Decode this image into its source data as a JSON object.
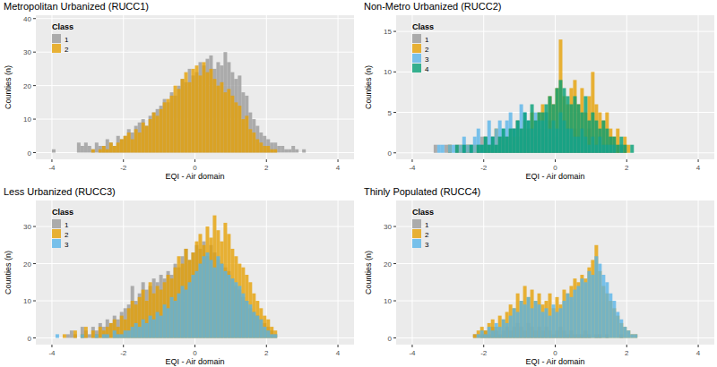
{
  "chart_data": [
    {
      "type": "histogram",
      "title": "Metropolitan Urbanized (RUCC1)",
      "x_label": "EQI - Air domain",
      "y_label": "Counties (n)",
      "legend_title": "Class",
      "legend": "top-left",
      "grid": true,
      "xlim": [
        -4.45,
        4.45
      ],
      "xticks": [
        -4,
        -2,
        0,
        2,
        4
      ],
      "ylim": [
        -2,
        41
      ],
      "yticks": [
        0,
        10,
        20,
        30,
        40
      ],
      "bins": [
        -4,
        -3.9,
        -3.8,
        -3.7,
        -3.6,
        -3.5,
        -3.4,
        -3.3,
        -3.2,
        -3.1,
        -3,
        -2.9,
        -2.8,
        -2.7,
        -2.6,
        -2.5,
        -2.4,
        -2.3,
        -2.2,
        -2.1,
        -2,
        -1.9,
        -1.8,
        -1.7,
        -1.6,
        -1.5,
        -1.4,
        -1.3,
        -1.2,
        -1.1,
        -1,
        -0.9,
        -0.8,
        -0.7,
        -0.6,
        -0.5,
        -0.4,
        -0.3,
        -0.2,
        -0.1,
        0,
        0.1,
        0.2,
        0.3,
        0.4,
        0.5,
        0.6,
        0.7,
        0.8,
        0.9,
        1,
        1.1,
        1.2,
        1.3,
        1.4,
        1.5,
        1.6,
        1.7,
        1.8,
        1.9,
        2,
        2.1,
        2.2,
        2.3,
        2.4,
        2.5,
        2.6,
        2.7,
        2.8,
        2.9,
        3,
        3.1
      ],
      "series": [
        {
          "name": "1",
          "color": "#999999",
          "values": [
            1,
            0,
            0,
            0,
            0,
            0,
            0,
            3,
            2,
            3,
            2,
            1,
            3,
            2,
            2,
            4,
            3,
            2,
            5,
            4,
            5,
            7,
            6,
            8,
            9,
            10,
            8,
            11,
            12,
            13,
            14,
            16,
            15,
            18,
            17,
            20,
            22,
            21,
            25,
            23,
            24,
            27,
            26,
            28,
            29,
            25,
            27,
            26,
            30,
            27,
            24,
            22,
            23,
            18,
            17,
            12,
            10,
            8,
            6,
            5,
            4,
            3,
            3,
            2,
            2,
            1,
            1,
            2,
            1,
            0,
            1
          ]
        },
        {
          "name": "2",
          "color": "#E69F00",
          "values": [
            0,
            0,
            0,
            0,
            0,
            0,
            0,
            0,
            0,
            0,
            0,
            1,
            0,
            1,
            2,
            1,
            3,
            2,
            3,
            4,
            5,
            6,
            4,
            7,
            6,
            9,
            8,
            10,
            12,
            11,
            13,
            15,
            16,
            17,
            20,
            19,
            22,
            24,
            21,
            25,
            26,
            23,
            27,
            24,
            25,
            22,
            20,
            21,
            18,
            19,
            17,
            15,
            14,
            10,
            11,
            7,
            6,
            4,
            3,
            2,
            2,
            1,
            1,
            0,
            0,
            0,
            0,
            0,
            0,
            0,
            0
          ]
        }
      ]
    },
    {
      "type": "histogram",
      "title": "Non-Metro Urbanized (RUCC2)",
      "x_label": "EQI - Air domain",
      "y_label": "Counties (n)",
      "legend_title": "Class",
      "legend": "top-left",
      "grid": true,
      "xlim": [
        -4.45,
        4.45
      ],
      "xticks": [
        -4,
        -2,
        0,
        2,
        4
      ],
      "ylim": [
        -0.8,
        17
      ],
      "yticks": [
        0,
        5,
        10,
        15
      ],
      "bins": [
        -3.4,
        -3.3,
        -3.2,
        -3.1,
        -3,
        -2.9,
        -2.8,
        -2.7,
        -2.6,
        -2.5,
        -2.4,
        -2.3,
        -2.2,
        -2.1,
        -2,
        -1.9,
        -1.8,
        -1.7,
        -1.6,
        -1.5,
        -1.4,
        -1.3,
        -1.2,
        -1.1,
        -1,
        -0.9,
        -0.8,
        -0.7,
        -0.6,
        -0.5,
        -0.4,
        -0.3,
        -0.2,
        -0.1,
        0,
        0.1,
        0.2,
        0.3,
        0.4,
        0.5,
        0.6,
        0.7,
        0.8,
        0.9,
        1,
        1.1,
        1.2,
        1.3,
        1.4,
        1.5,
        1.6,
        1.7,
        1.8,
        1.9,
        2,
        2.1,
        2.2
      ],
      "series": [
        {
          "name": "1",
          "color": "#999999",
          "values": [
            1,
            0,
            0,
            1,
            1,
            0,
            1,
            0,
            1,
            1,
            1,
            0,
            1,
            2,
            1,
            1,
            2,
            1,
            2,
            1,
            2,
            1,
            3,
            2,
            2,
            3,
            2,
            3,
            2,
            3,
            3,
            2,
            4,
            3,
            2,
            3,
            4,
            3,
            2,
            3,
            2,
            3,
            2,
            3,
            2,
            1,
            2,
            1,
            1,
            2,
            1,
            1,
            0,
            1,
            0,
            0
          ]
        },
        {
          "name": "2",
          "color": "#E69F00",
          "values": [
            0,
            0,
            0,
            0,
            1,
            0,
            0,
            1,
            0,
            1,
            0,
            1,
            1,
            0,
            2,
            1,
            1,
            3,
            2,
            2,
            2,
            3,
            2,
            4,
            3,
            4,
            3,
            5,
            4,
            5,
            6,
            5,
            7,
            6,
            8,
            14,
            7,
            6,
            8,
            9,
            6,
            8,
            5,
            7,
            10,
            6,
            5,
            4,
            5,
            3,
            2,
            3,
            1,
            2,
            1,
            0
          ]
        },
        {
          "name": "3",
          "color": "#56B4E9",
          "values": [
            0,
            1,
            1,
            0,
            1,
            1,
            0,
            1,
            2,
            1,
            1,
            2,
            3,
            1,
            2,
            4,
            2,
            3,
            4,
            3,
            4,
            5,
            3,
            4,
            6,
            5,
            4,
            3,
            5,
            4,
            4,
            5,
            3,
            4,
            3,
            5,
            4,
            3,
            3,
            2,
            2,
            3,
            2,
            1,
            2,
            1,
            2,
            1,
            1,
            1,
            1,
            0,
            1,
            0,
            0,
            0
          ]
        },
        {
          "name": "4",
          "color": "#009E73",
          "values": [
            0,
            0,
            0,
            0,
            0,
            0,
            1,
            0,
            1,
            0,
            1,
            0,
            1,
            1,
            2,
            1,
            2,
            1,
            2,
            3,
            2,
            3,
            3,
            4,
            3,
            5,
            4,
            6,
            4,
            5,
            5,
            6,
            7,
            6,
            8,
            9,
            8,
            7,
            6,
            7,
            6,
            5,
            7,
            4,
            5,
            4,
            3,
            4,
            3,
            2,
            2,
            1,
            2,
            1,
            0,
            1
          ]
        }
      ]
    },
    {
      "type": "histogram",
      "title": "Less Urbanized (RUCC3)",
      "x_label": "EQI - Air domain",
      "y_label": "Counties (n)",
      "legend_title": "Class",
      "legend": "top-left",
      "grid": true,
      "xlim": [
        -4.45,
        4.45
      ],
      "xticks": [
        -4,
        -2,
        0,
        2,
        4
      ],
      "ylim": [
        -1.8,
        37
      ],
      "yticks": [
        0,
        10,
        20,
        30
      ],
      "bins": [
        -3.9,
        -3.8,
        -3.7,
        -3.6,
        -3.5,
        -3.4,
        -3.3,
        -3.2,
        -3.1,
        -3,
        -2.9,
        -2.8,
        -2.7,
        -2.6,
        -2.5,
        -2.4,
        -2.3,
        -2.2,
        -2.1,
        -2,
        -1.9,
        -1.8,
        -1.7,
        -1.6,
        -1.5,
        -1.4,
        -1.3,
        -1.2,
        -1.1,
        -1,
        -0.9,
        -0.8,
        -0.7,
        -0.6,
        -0.5,
        -0.4,
        -0.3,
        -0.2,
        -0.1,
        0,
        0.1,
        0.2,
        0.3,
        0.4,
        0.5,
        0.6,
        0.7,
        0.8,
        0.9,
        1,
        1.1,
        1.2,
        1.3,
        1.4,
        1.5,
        1.6,
        1.7,
        1.8,
        1.9,
        2,
        2.1,
        2.2,
        2.3
      ],
      "series": [
        {
          "name": "1",
          "color": "#999999",
          "values": [
            0,
            0,
            0,
            1,
            2,
            1,
            0,
            3,
            2,
            1,
            3,
            2,
            4,
            3,
            5,
            4,
            6,
            5,
            7,
            8,
            9,
            14,
            10,
            12,
            15,
            13,
            14,
            16,
            15,
            17,
            16,
            18,
            17,
            20,
            19,
            22,
            24,
            21,
            23,
            25,
            24,
            26,
            22,
            25,
            23,
            21,
            20,
            19,
            18,
            16,
            14,
            13,
            11,
            10,
            8,
            7,
            6,
            5,
            4,
            3,
            2,
            1
          ]
        },
        {
          "name": "2",
          "color": "#E69F00",
          "values": [
            0,
            0,
            1,
            0,
            0,
            2,
            0,
            1,
            3,
            0,
            2,
            1,
            3,
            2,
            3,
            4,
            5,
            3,
            6,
            5,
            8,
            10,
            9,
            11,
            13,
            10,
            15,
            12,
            14,
            13,
            15,
            17,
            16,
            19,
            22,
            20,
            24,
            21,
            23,
            26,
            28,
            25,
            30,
            27,
            33,
            29,
            26,
            31,
            28,
            24,
            22,
            20,
            19,
            17,
            15,
            12,
            10,
            8,
            6,
            5,
            3,
            2
          ]
        },
        {
          "name": "3",
          "color": "#56B4E9",
          "values": [
            1,
            0,
            0,
            0,
            0,
            0,
            0,
            1,
            0,
            0,
            0,
            1,
            0,
            1,
            1,
            0,
            2,
            1,
            1,
            2,
            2,
            3,
            4,
            3,
            5,
            4,
            6,
            5,
            7,
            6,
            9,
            8,
            11,
            10,
            12,
            14,
            13,
            15,
            17,
            18,
            20,
            22,
            23,
            21,
            19,
            22,
            20,
            18,
            17,
            16,
            15,
            14,
            12,
            10,
            9,
            7,
            6,
            5,
            3,
            2,
            1,
            1
          ]
        }
      ]
    },
    {
      "type": "histogram",
      "title": "Thinly Populated (RUCC4)",
      "x_label": "EQI - Air domain",
      "y_label": "Counties (n)",
      "legend_title": "Class",
      "legend": "top-left",
      "grid": true,
      "xlim": [
        -4.45,
        4.45
      ],
      "xticks": [
        -4,
        -2,
        0,
        2,
        4
      ],
      "ylim": [
        -1.8,
        37
      ],
      "yticks": [
        0,
        10,
        20,
        30
      ],
      "bins": [
        -2.3,
        -2.2,
        -2.1,
        -2,
        -1.9,
        -1.8,
        -1.7,
        -1.6,
        -1.5,
        -1.4,
        -1.3,
        -1.2,
        -1.1,
        -1,
        -0.9,
        -0.8,
        -0.7,
        -0.6,
        -0.5,
        -0.4,
        -0.3,
        -0.2,
        -0.1,
        0,
        0.1,
        0.2,
        0.3,
        0.4,
        0.5,
        0.6,
        0.7,
        0.8,
        0.9,
        1,
        1.1,
        1.2,
        1.3,
        1.4,
        1.5,
        1.6,
        1.7,
        1.8,
        1.9,
        2,
        2.1,
        2.2,
        2.3
      ],
      "series": [
        {
          "name": "1",
          "color": "#999999",
          "values": [
            1,
            0,
            1,
            2,
            1,
            3,
            2,
            1,
            2,
            3,
            2,
            3,
            4,
            3,
            2,
            4,
            3,
            2,
            3,
            2,
            3,
            2,
            1,
            2,
            3,
            2,
            1,
            2,
            1,
            1,
            1,
            2,
            1,
            0,
            1,
            1,
            0,
            1,
            0,
            0,
            0,
            1,
            0,
            0,
            0,
            0
          ]
        },
        {
          "name": "2",
          "color": "#E69F00",
          "values": [
            1,
            2,
            3,
            2,
            4,
            5,
            3,
            6,
            5,
            7,
            9,
            8,
            12,
            10,
            14,
            11,
            13,
            10,
            12,
            9,
            10,
            12,
            8,
            11,
            9,
            13,
            12,
            14,
            16,
            15,
            17,
            16,
            19,
            21,
            25,
            18,
            14,
            12,
            10,
            8,
            6,
            4,
            3,
            2,
            1,
            1
          ]
        },
        {
          "name": "3",
          "color": "#56B4E9",
          "values": [
            0,
            1,
            2,
            1,
            3,
            2,
            4,
            3,
            5,
            4,
            6,
            8,
            7,
            10,
            9,
            11,
            8,
            10,
            9,
            7,
            8,
            6,
            9,
            7,
            8,
            10,
            12,
            11,
            13,
            14,
            16,
            15,
            18,
            17,
            22,
            20,
            17,
            15,
            12,
            10,
            7,
            5,
            3,
            2,
            1,
            1
          ]
        }
      ]
    }
  ]
}
